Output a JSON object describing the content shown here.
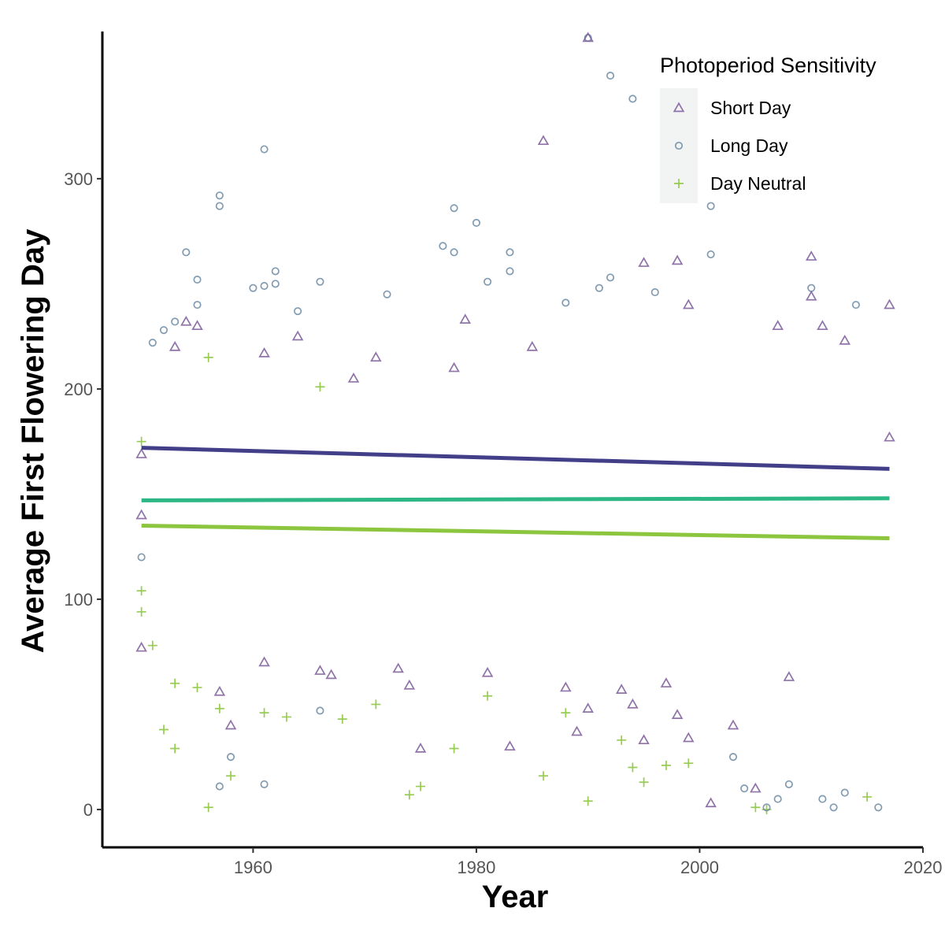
{
  "chart_data": {
    "type": "scatter",
    "title": "",
    "xlabel": "Year",
    "ylabel": "Average First Flowering Day",
    "xlim": [
      1946.5,
      2020
    ],
    "ylim": [
      -18,
      370
    ],
    "x_ticks": [
      1960,
      1980,
      2000,
      2020
    ],
    "x_tick_labels": [
      "1960",
      "1980",
      "2000",
      "2020"
    ],
    "y_ticks": [
      0,
      100,
      200,
      300
    ],
    "y_tick_labels": [
      "0",
      "100",
      "200",
      "300"
    ],
    "grid": false,
    "legend": {
      "title": "Photoperiod Sensitivity",
      "position": "top-right",
      "entries": [
        {
          "label": "Short Day",
          "marker": "triangle",
          "color": "#7b5a9a"
        },
        {
          "label": "Long Day",
          "marker": "circle",
          "color": "#6a8aa5"
        },
        {
          "label": "Day Neutral",
          "marker": "plus",
          "color": "#8cc63f"
        }
      ]
    },
    "series": [
      {
        "name": "Short Day",
        "marker": "triangle",
        "color": "#7b5a9a",
        "trend": {
          "x": [
            1950,
            2017
          ],
          "y": [
            172,
            162
          ],
          "color": "#423e88"
        },
        "points": [
          [
            1950,
            169
          ],
          [
            1950,
            140
          ],
          [
            1950,
            77
          ],
          [
            1953,
            220
          ],
          [
            1954,
            232
          ],
          [
            1955,
            230
          ],
          [
            1957,
            56
          ],
          [
            1958,
            40
          ],
          [
            1961,
            217
          ],
          [
            1961,
            70
          ],
          [
            1964,
            225
          ],
          [
            1966,
            66
          ],
          [
            1967,
            64
          ],
          [
            1969,
            205
          ],
          [
            1971,
            215
          ],
          [
            1973,
            67
          ],
          [
            1974,
            59
          ],
          [
            1975,
            29
          ],
          [
            1978,
            210
          ],
          [
            1979,
            233
          ],
          [
            1981,
            65
          ],
          [
            1983,
            30
          ],
          [
            1985,
            220
          ],
          [
            1986,
            318
          ],
          [
            1988,
            58
          ],
          [
            1989,
            37
          ],
          [
            1990,
            367
          ],
          [
            1990,
            48
          ],
          [
            1993,
            57
          ],
          [
            1994,
            50
          ],
          [
            1995,
            260
          ],
          [
            1995,
            33
          ],
          [
            1997,
            60
          ],
          [
            1998,
            261
          ],
          [
            1998,
            45
          ],
          [
            1999,
            240
          ],
          [
            1999,
            34
          ],
          [
            2001,
            3
          ],
          [
            2003,
            40
          ],
          [
            2005,
            10
          ],
          [
            2007,
            230
          ],
          [
            2008,
            63
          ],
          [
            2010,
            263
          ],
          [
            2010,
            244
          ],
          [
            2011,
            230
          ],
          [
            2013,
            223
          ],
          [
            2017,
            240
          ],
          [
            2017,
            177
          ]
        ]
      },
      {
        "name": "Long Day",
        "marker": "circle",
        "color": "#6a8aa5",
        "trend": {
          "x": [
            1950,
            2017
          ],
          "y": [
            147,
            148
          ],
          "color": "#2db784"
        },
        "points": [
          [
            1950,
            120
          ],
          [
            1951,
            222
          ],
          [
            1952,
            228
          ],
          [
            1953,
            232
          ],
          [
            1954,
            265
          ],
          [
            1955,
            252
          ],
          [
            1955,
            240
          ],
          [
            1957,
            292
          ],
          [
            1957,
            287
          ],
          [
            1957,
            11
          ],
          [
            1958,
            25
          ],
          [
            1960,
            248
          ],
          [
            1961,
            314
          ],
          [
            1961,
            249
          ],
          [
            1961,
            12
          ],
          [
            1962,
            256
          ],
          [
            1962,
            250
          ],
          [
            1964,
            237
          ],
          [
            1966,
            251
          ],
          [
            1966,
            47
          ],
          [
            1972,
            245
          ],
          [
            1977,
            268
          ],
          [
            1978,
            286
          ],
          [
            1978,
            265
          ],
          [
            1980,
            279
          ],
          [
            1981,
            251
          ],
          [
            1983,
            265
          ],
          [
            1983,
            256
          ],
          [
            1988,
            241
          ],
          [
            1990,
            367
          ],
          [
            1991,
            248
          ],
          [
            1992,
            349
          ],
          [
            1992,
            253
          ],
          [
            1994,
            338
          ],
          [
            1996,
            246
          ],
          [
            2001,
            287
          ],
          [
            2001,
            264
          ],
          [
            2003,
            25
          ],
          [
            2004,
            10
          ],
          [
            2006,
            1
          ],
          [
            2007,
            5
          ],
          [
            2008,
            12
          ],
          [
            2010,
            248
          ],
          [
            2011,
            5
          ],
          [
            2012,
            1
          ],
          [
            2013,
            8
          ],
          [
            2014,
            240
          ],
          [
            2016,
            1
          ]
        ]
      },
      {
        "name": "Day Neutral",
        "marker": "plus",
        "color": "#8cc63f",
        "trend": {
          "x": [
            1950,
            2017
          ],
          "y": [
            135,
            129
          ],
          "color": "#8cc63f"
        },
        "points": [
          [
            1950,
            175
          ],
          [
            1950,
            104
          ],
          [
            1950,
            94
          ],
          [
            1951,
            78
          ],
          [
            1952,
            38
          ],
          [
            1953,
            60
          ],
          [
            1953,
            29
          ],
          [
            1955,
            58
          ],
          [
            1956,
            1
          ],
          [
            1956,
            215
          ],
          [
            1957,
            48
          ],
          [
            1958,
            16
          ],
          [
            1961,
            46
          ],
          [
            1963,
            44
          ],
          [
            1966,
            201
          ],
          [
            1968,
            43
          ],
          [
            1971,
            50
          ],
          [
            1974,
            7
          ],
          [
            1975,
            11
          ],
          [
            1978,
            29
          ],
          [
            1981,
            54
          ],
          [
            1986,
            16
          ],
          [
            1988,
            46
          ],
          [
            1990,
            4
          ],
          [
            1993,
            33
          ],
          [
            1994,
            20
          ],
          [
            1995,
            13
          ],
          [
            1997,
            21
          ],
          [
            1999,
            22
          ],
          [
            2005,
            1
          ],
          [
            2006,
            0
          ],
          [
            2015,
            6
          ]
        ]
      }
    ]
  }
}
